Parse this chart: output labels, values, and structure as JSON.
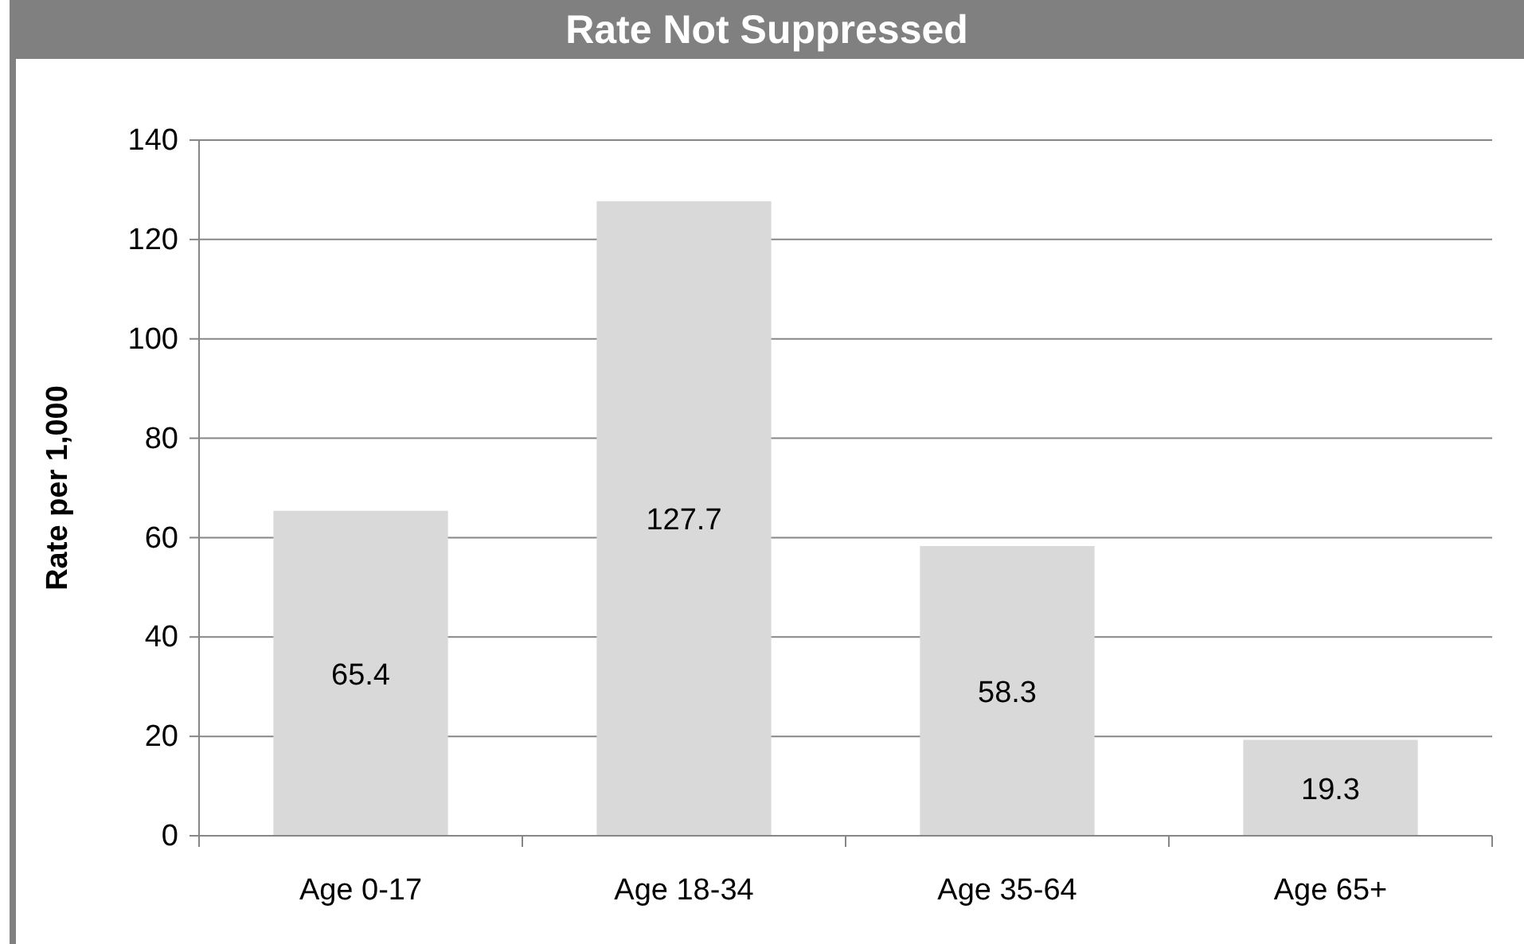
{
  "chart_data": {
    "type": "bar",
    "title": "Rate Not Suppressed",
    "ylabel": "Rate per 1,000",
    "categories": [
      "Age 0-17",
      "Age 18-34",
      "Age 35-64",
      "Age 65+"
    ],
    "values": [
      65.4,
      127.7,
      58.3,
      19.3
    ],
    "color": "#d9d9d9",
    "ylim": [
      0,
      140
    ],
    "yticks": [
      0,
      20,
      40,
      60,
      80,
      100,
      120,
      140
    ],
    "grid": "y",
    "data_labels": true
  }
}
